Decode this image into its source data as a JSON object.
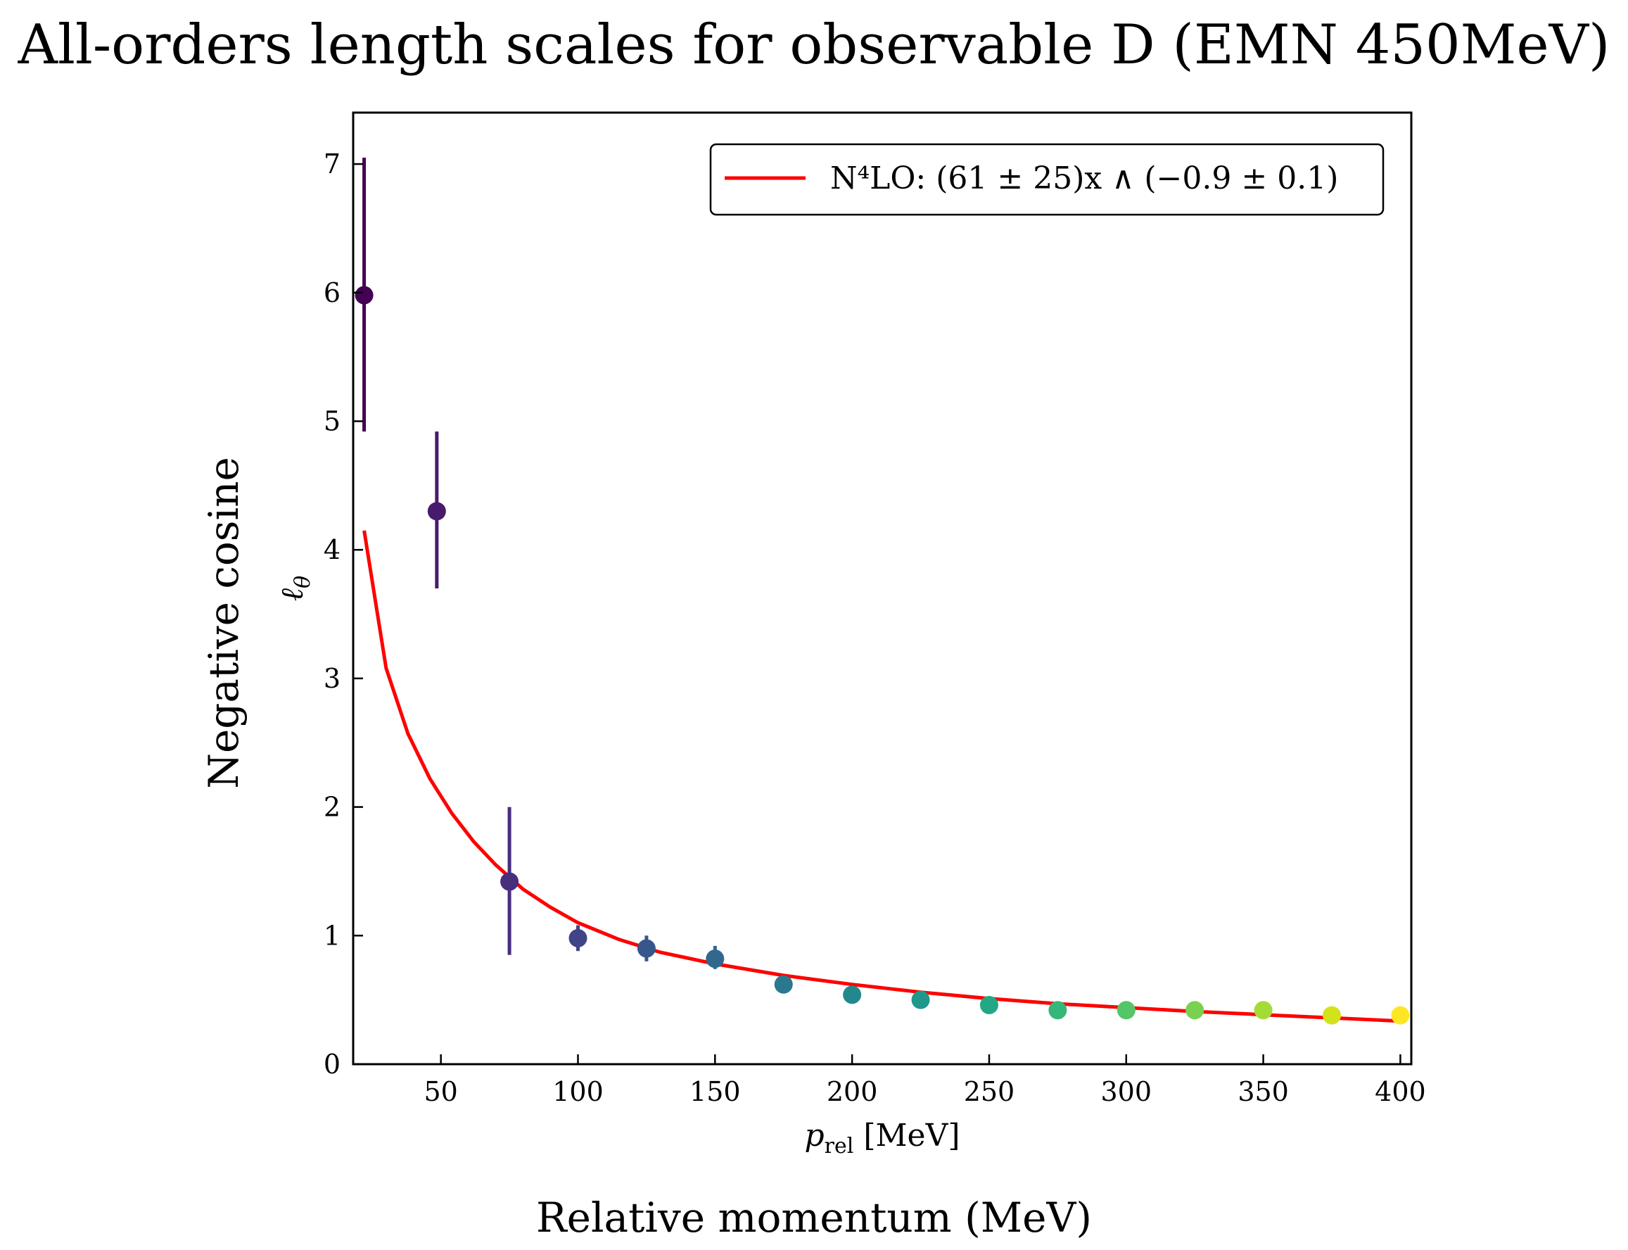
{
  "figure": {
    "title": "All-orders length scales for observable D (EMN 450MeV)",
    "outer_xlabel": "Relative momentum (MeV)",
    "outer_ylabel": "Negative cosine"
  },
  "chart_data": {
    "type": "scatter",
    "xlabel_var": "p",
    "xlabel_sub": "rel",
    "xlabel_unit": "[MeV]",
    "ylabel_var": "ℓ",
    "ylabel_sub": "θ",
    "xlim": [
      18,
      404
    ],
    "ylim": [
      0,
      7.4
    ],
    "xticks": [
      50,
      100,
      150,
      200,
      250,
      300,
      350,
      400
    ],
    "yticks": [
      0,
      1,
      2,
      3,
      4,
      5,
      6,
      7
    ],
    "grid": false,
    "legend_position": "top-right",
    "points": {
      "x": [
        22,
        48.5,
        75,
        100,
        125,
        150,
        175,
        200,
        225,
        250,
        275,
        300,
        325,
        350,
        375,
        400
      ],
      "y": [
        5.98,
        4.3,
        1.42,
        0.98,
        0.9,
        0.82,
        0.62,
        0.54,
        0.5,
        0.46,
        0.42,
        0.42,
        0.42,
        0.42,
        0.38,
        0.38
      ],
      "yerr_low": [
        4.92,
        3.7,
        0.85,
        0.88,
        0.8,
        0.74,
        0.62,
        0.54,
        0.5,
        0.46,
        0.42,
        0.42,
        0.42,
        0.42,
        0.38,
        0.38
      ],
      "yerr_high": [
        7.05,
        4.92,
        2.0,
        1.08,
        1.0,
        0.92,
        0.62,
        0.54,
        0.5,
        0.46,
        0.42,
        0.42,
        0.42,
        0.42,
        0.38,
        0.38
      ],
      "colors": [
        "#440154",
        "#481a6c",
        "#472f7d",
        "#414487",
        "#39568c",
        "#31688e",
        "#2a788e",
        "#23888e",
        "#1f988b",
        "#22a884",
        "#35b779",
        "#54c568",
        "#7ad151",
        "#a5db36",
        "#d2e21b",
        "#fde725"
      ]
    },
    "series": [
      {
        "name": "N⁴LO: (61 ± 25)x ∧ (−0.9 ± 0.1)",
        "type": "line",
        "color": "#ff0000",
        "x": [
          22,
          30,
          38,
          46,
          54,
          62,
          70,
          80,
          90,
          100,
          115,
          130,
          150,
          175,
          200,
          225,
          250,
          275,
          300,
          325,
          350,
          375,
          400
        ],
        "y": [
          4.15,
          3.08,
          2.57,
          2.22,
          1.95,
          1.73,
          1.55,
          1.36,
          1.22,
          1.1,
          0.97,
          0.87,
          0.78,
          0.69,
          0.62,
          0.56,
          0.51,
          0.47,
          0.44,
          0.41,
          0.385,
          0.36,
          0.335
        ]
      }
    ]
  }
}
